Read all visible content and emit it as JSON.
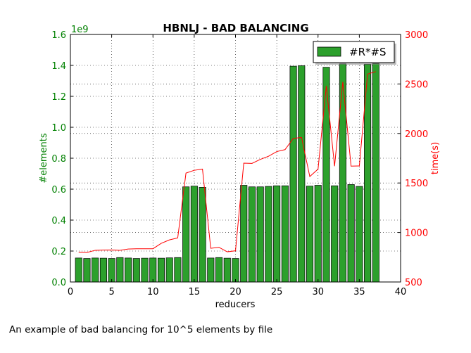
{
  "chart_data": {
    "type": "bar",
    "title": "HBNLJ - BAD BALANCING",
    "xlabel": "reducers",
    "ylabel": "#elements",
    "ylabel_right": "time(s)",
    "y_multiplier_label": "1e9",
    "xlim": [
      0,
      40
    ],
    "ylim": [
      0,
      1600000000
    ],
    "ylim_right": [
      500,
      3000
    ],
    "x_ticks": [
      0,
      5,
      10,
      15,
      20,
      25,
      30,
      35,
      40
    ],
    "y_ticks": [
      0.0,
      0.2,
      0.4,
      0.6,
      0.8,
      1.0,
      1.2,
      1.4,
      1.6
    ],
    "y_ticks_right": [
      500,
      1000,
      1500,
      2000,
      2500,
      3000
    ],
    "grid": true,
    "legend_position": "top-right",
    "series": [
      {
        "name": "#R*#S",
        "kind": "bar",
        "color": "#2ca02c",
        "axis": "left",
        "x": [
          1,
          2,
          3,
          4,
          5,
          6,
          7,
          8,
          9,
          10,
          11,
          12,
          13,
          14,
          15,
          16,
          17,
          18,
          19,
          20,
          21,
          22,
          23,
          24,
          25,
          26,
          27,
          28,
          29,
          30,
          31,
          32,
          33,
          34,
          35,
          36,
          37
        ],
        "values": [
          155000000,
          152000000,
          155000000,
          154000000,
          152000000,
          158000000,
          155000000,
          152000000,
          154000000,
          155000000,
          154000000,
          156000000,
          158000000,
          615000000,
          620000000,
          612000000,
          155000000,
          158000000,
          154000000,
          152000000,
          625000000,
          615000000,
          615000000,
          618000000,
          622000000,
          622000000,
          1395000000,
          1398000000,
          620000000,
          625000000,
          1388000000,
          622000000,
          1410000000,
          630000000,
          618000000,
          1408000000,
          1412000000
        ]
      },
      {
        "kind": "line",
        "color": "#ff0000",
        "axis": "right",
        "x": [
          1,
          2,
          3,
          4,
          5,
          6,
          7,
          8,
          9,
          10,
          11,
          12,
          13,
          14,
          15,
          16,
          17,
          18,
          19,
          20,
          21,
          22,
          23,
          24,
          25,
          26,
          27,
          28,
          29,
          30,
          31,
          32,
          33,
          34,
          35,
          36,
          37
        ],
        "values": [
          800,
          798,
          820,
          822,
          823,
          820,
          833,
          836,
          836,
          836,
          890,
          925,
          945,
          1600,
          1628,
          1640,
          840,
          850,
          805,
          815,
          1700,
          1698,
          1738,
          1770,
          1817,
          1837,
          1950,
          1960,
          1565,
          1640,
          2480,
          1670,
          2520,
          1670,
          1672,
          2600,
          2625
        ]
      }
    ]
  },
  "caption": "An example of bad balancing for 10^5 elements by file"
}
